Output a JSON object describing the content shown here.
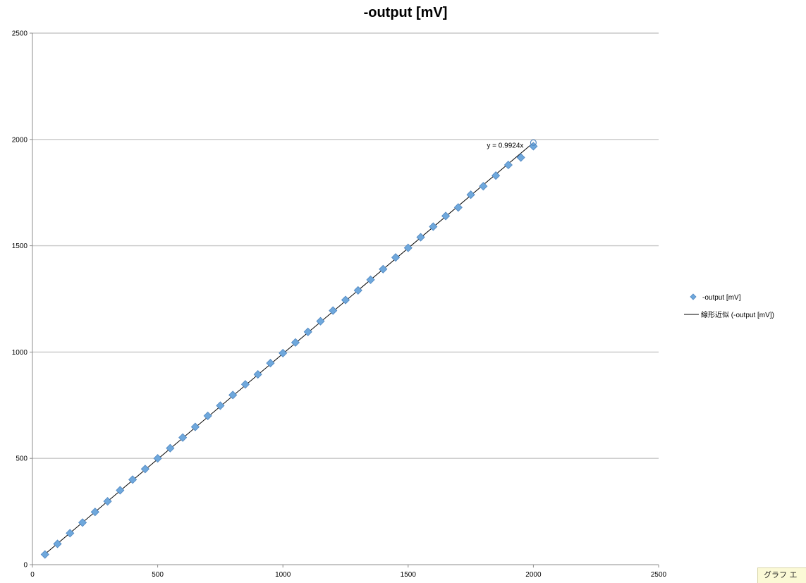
{
  "corner_tab": {
    "label": "グラフ エ"
  },
  "chart_data": {
    "type": "scatter",
    "title": "-output [mV]",
    "xlabel": "",
    "ylabel": "",
    "xlim": [
      0,
      2500
    ],
    "ylim": [
      0,
      2500
    ],
    "x_ticks": [
      0,
      500,
      1000,
      1500,
      2000,
      2500
    ],
    "y_ticks": [
      0,
      500,
      1000,
      1500,
      2000,
      2500
    ],
    "x_tick_labels": [
      "0",
      "500",
      "1000",
      "1500",
      "2000",
      "2500"
    ],
    "y_tick_labels": [
      "0",
      "500",
      "1000",
      "1500",
      "2000",
      "2500"
    ],
    "grid": {
      "horizontal": true,
      "vertical": false
    },
    "legend_position": "right",
    "series": [
      {
        "name": "-output [mV]",
        "marker": "diamond",
        "color": "#6fa8dc",
        "x": [
          50,
          100,
          150,
          200,
          250,
          300,
          350,
          400,
          450,
          500,
          550,
          600,
          650,
          700,
          750,
          800,
          850,
          900,
          950,
          1000,
          1050,
          1100,
          1150,
          1200,
          1250,
          1300,
          1350,
          1400,
          1450,
          1500,
          1550,
          1600,
          1650,
          1700,
          1750,
          1800,
          1850,
          1900,
          1950,
          2000
        ],
        "y": [
          48,
          98,
          148,
          198,
          248,
          298,
          350,
          400,
          450,
          500,
          548,
          598,
          648,
          700,
          748,
          798,
          848,
          895,
          948,
          995,
          1045,
          1095,
          1145,
          1195,
          1245,
          1290,
          1340,
          1390,
          1445,
          1490,
          1540,
          1590,
          1640,
          1680,
          1740,
          1780,
          1830,
          1880,
          1915,
          1968
        ]
      }
    ],
    "trendline": {
      "name": "線形近似 (-output [mV])",
      "type": "linear",
      "slope": 0.9924,
      "x_range": [
        50,
        2000
      ],
      "equation": "y = 0.9924x",
      "color": "#000000"
    },
    "highlight_point": {
      "x": 2000,
      "y": 1985
    }
  }
}
